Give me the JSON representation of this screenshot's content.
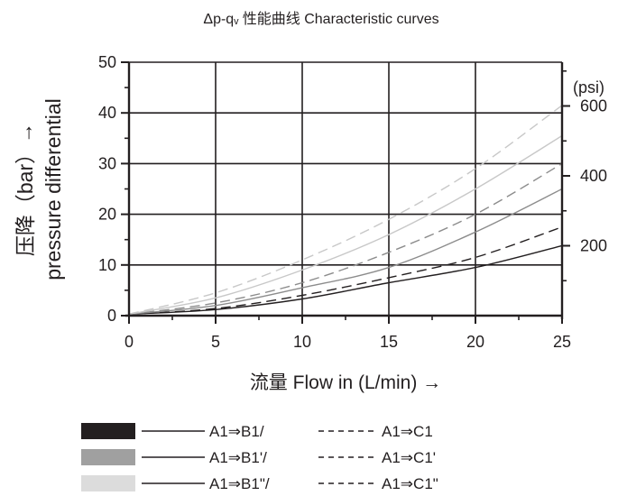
{
  "chart_data": {
    "type": "line",
    "title": "Δp-qᵥ 性能曲线   Characteristic curves",
    "xlabel": "流量  Flow in (L/min) →",
    "ylabel_line1": "压降（bar）→",
    "ylabel_line2": "pressure differential",
    "secondary_axis_unit": "(psi)",
    "xlim": [
      0,
      25
    ],
    "ylim": [
      0,
      50
    ],
    "x_ticks": [
      0,
      5,
      10,
      15,
      20,
      25
    ],
    "y_ticks": [
      0,
      10,
      20,
      30,
      40,
      50
    ],
    "secondary_ticks_psi": [
      200,
      400,
      600
    ],
    "grid": true,
    "series": [
      {
        "name": "A1⇒B1/",
        "color": "#231f20",
        "dash": "solid",
        "points": [
          [
            0,
            0.3
          ],
          [
            5,
            1.2
          ],
          [
            10,
            3.3
          ],
          [
            15,
            6.5
          ],
          [
            20,
            9.5
          ],
          [
            25,
            13.8
          ]
        ]
      },
      {
        "name": "A1⇒C1",
        "color": "#231f20",
        "dash": "dashed",
        "points": [
          [
            0,
            0.3
          ],
          [
            5,
            1.4
          ],
          [
            10,
            4.0
          ],
          [
            15,
            7.5
          ],
          [
            20,
            11.5
          ],
          [
            25,
            17.5
          ]
        ]
      },
      {
        "name": "A1⇒B1'/",
        "color": "#8c8c8c",
        "dash": "solid",
        "points": [
          [
            0,
            0.3
          ],
          [
            5,
            2.0
          ],
          [
            10,
            5.5
          ],
          [
            15,
            9.5
          ],
          [
            20,
            16.5
          ],
          [
            25,
            25.0
          ]
        ]
      },
      {
        "name": "A1⇒C1'",
        "color": "#8c8c8c",
        "dash": "dashed",
        "points": [
          [
            0,
            0.3
          ],
          [
            5,
            2.5
          ],
          [
            10,
            6.5
          ],
          [
            15,
            12.5
          ],
          [
            20,
            20.0
          ],
          [
            25,
            30.0
          ]
        ]
      },
      {
        "name": "A1⇒B1\"/",
        "color": "#c8c8c8",
        "dash": "solid",
        "points": [
          [
            0,
            0.3
          ],
          [
            5,
            3.5
          ],
          [
            10,
            9.0
          ],
          [
            15,
            16.0
          ],
          [
            20,
            25.0
          ],
          [
            25,
            35.5
          ]
        ]
      },
      {
        "name": "A1⇒C1\"",
        "color": "#c8c8c8",
        "dash": "dashed",
        "points": [
          [
            0,
            0.3
          ],
          [
            5,
            4.5
          ],
          [
            10,
            11.0
          ],
          [
            15,
            19.0
          ],
          [
            20,
            29.0
          ],
          [
            25,
            41.5
          ]
        ]
      }
    ],
    "legend": {
      "placement": "bottom",
      "rows": [
        {
          "swatch_color": "#231f20",
          "solid_label": "A1⇒B1/",
          "dashed_label": "A1⇒C1"
        },
        {
          "swatch_color": "#a0a0a0",
          "solid_label": "A1⇒B1'/",
          "dashed_label": "A1⇒C1'"
        },
        {
          "swatch_color": "#dcdcdc",
          "solid_label": "A1⇒B1\"/",
          "dashed_label": "A1⇒C1\""
        }
      ]
    }
  }
}
